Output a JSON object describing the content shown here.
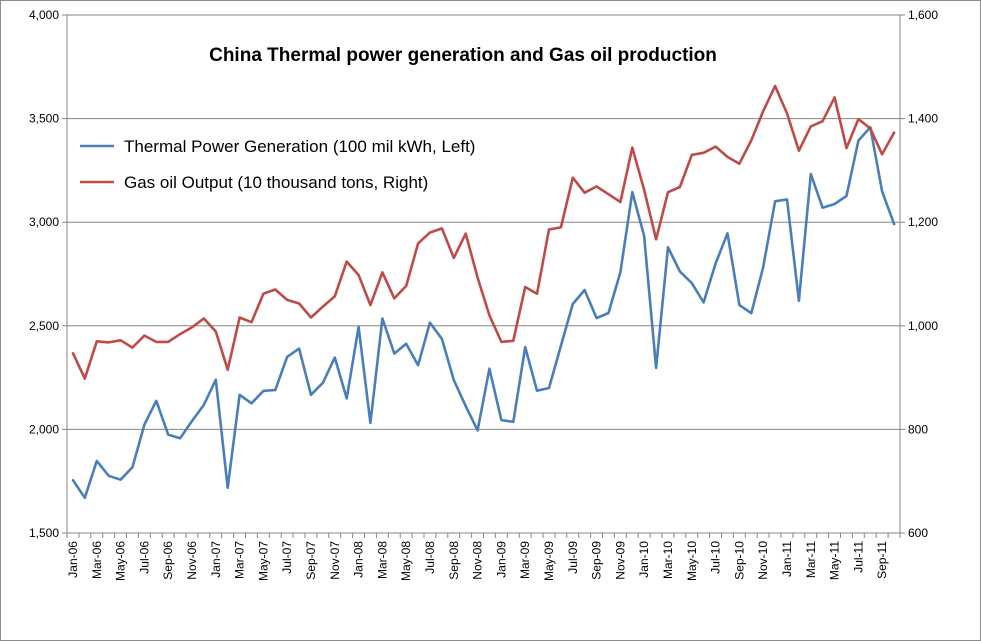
{
  "chart_data": {
    "type": "line",
    "title": "China Thermal power generation and Gas oil production",
    "legend_position": "top-left",
    "grid": true,
    "categories": [
      "Jan-06",
      "Feb-06",
      "Mar-06",
      "Apr-06",
      "May-06",
      "Jun-06",
      "Jul-06",
      "Aug-06",
      "Sep-06",
      "Oct-06",
      "Nov-06",
      "Dec-06",
      "Jan-07",
      "Feb-07",
      "Mar-07",
      "Apr-07",
      "May-07",
      "Jun-07",
      "Jul-07",
      "Aug-07",
      "Sep-07",
      "Oct-07",
      "Nov-07",
      "Dec-07",
      "Jan-08",
      "Feb-08",
      "Mar-08",
      "Apr-08",
      "May-08",
      "Jun-08",
      "Jul-08",
      "Aug-08",
      "Sep-08",
      "Oct-08",
      "Nov-08",
      "Dec-08",
      "Jan-09",
      "Feb-09",
      "Mar-09",
      "Apr-09",
      "May-09",
      "Jun-09",
      "Jul-09",
      "Aug-09",
      "Sep-09",
      "Oct-09",
      "Nov-09",
      "Dec-09",
      "Jan-10",
      "Feb-10",
      "Mar-10",
      "Apr-10",
      "May-10",
      "Jun-10",
      "Jul-10",
      "Aug-10",
      "Sep-10",
      "Oct-10",
      "Nov-10",
      "Dec-10",
      "Jan-11",
      "Feb-11",
      "Mar-11",
      "Apr-11",
      "May-11",
      "Jun-11",
      "Jul-11",
      "Aug-11",
      "Sep-11",
      "Oct-11"
    ],
    "x_tick_labels": [
      "Jan-06",
      "Mar-06",
      "May-06",
      "Jul-06",
      "Sep-06",
      "Nov-06",
      "Jan-07",
      "Mar-07",
      "May-07",
      "Jul-07",
      "Sep-07",
      "Nov-07",
      "Jan-08",
      "Mar-08",
      "May-08",
      "Jul-08",
      "Sep-08",
      "Nov-08",
      "Jan-09",
      "Mar-09",
      "May-09",
      "Jul-09",
      "Sep-09",
      "Nov-09",
      "Jan-10",
      "Mar-10",
      "May-10",
      "Jul-10",
      "Sep-10",
      "Nov-10",
      "Jan-11",
      "Mar-11",
      "May-11",
      "Jul-11",
      "Sep-11"
    ],
    "y_left": {
      "min": 1500,
      "max": 4000,
      "ticks": [
        "1,500",
        "2,000",
        "2,500",
        "3,000",
        "3,500",
        "4,000"
      ]
    },
    "y_right": {
      "min": 600,
      "max": 1600,
      "ticks": [
        "600",
        "800",
        "1,000",
        "1,200",
        "1,400",
        "1,600"
      ]
    },
    "series": [
      {
        "name": "Thermal Power Generation (100 mil kWh, Left)",
        "axis": "left",
        "color": "#4a7ebb",
        "values": [
          1755,
          1670,
          1848,
          1776,
          1757,
          1817,
          2023,
          2138,
          1975,
          1957,
          2040,
          2118,
          2240,
          1718,
          2167,
          2126,
          2186,
          2190,
          2350,
          2390,
          2167,
          2225,
          2347,
          2149,
          2495,
          2031,
          2535,
          2366,
          2413,
          2310,
          2515,
          2437,
          2238,
          2113,
          1995,
          2293,
          2045,
          2036,
          2397,
          2187,
          2200,
          2403,
          2605,
          2673,
          2537,
          2562,
          2759,
          3145,
          2935,
          2297,
          2879,
          2762,
          2706,
          2613,
          2801,
          2946,
          2600,
          2561,
          2781,
          3101,
          3110,
          2621,
          3232,
          3070,
          3088,
          3127,
          3394,
          3458,
          3149,
          2991
        ]
      },
      {
        "name": "Gas oil Output (10 thousand tons, Right)",
        "axis": "right",
        "color": "#be4b48",
        "values": [
          947,
          898,
          970,
          968,
          972,
          958,
          981,
          969,
          969,
          984,
          997,
          1014,
          989,
          915,
          1016,
          1007,
          1062,
          1070,
          1050,
          1043,
          1016,
          1037,
          1057,
          1124,
          1098,
          1040,
          1103,
          1053,
          1077,
          1159,
          1180,
          1188,
          1131,
          1178,
          1093,
          1020,
          969,
          971,
          1075,
          1062,
          1186,
          1190,
          1286,
          1257,
          1269,
          1254,
          1239,
          1344,
          1263,
          1167,
          1258,
          1268,
          1330,
          1334,
          1346,
          1326,
          1313,
          1358,
          1414,
          1463,
          1410,
          1338,
          1385,
          1395,
          1441,
          1343,
          1399,
          1381,
          1331,
          1373
        ]
      }
    ]
  }
}
